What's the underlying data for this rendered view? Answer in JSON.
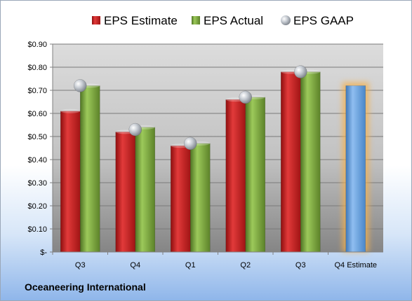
{
  "chart_data": {
    "type": "bar",
    "categories": [
      "Q3",
      "Q4",
      "Q1",
      "Q2",
      "Q3",
      "Q4 Estimate"
    ],
    "series": [
      {
        "name": "EPS Estimate",
        "values": [
          0.61,
          0.52,
          0.46,
          0.66,
          0.78,
          null
        ],
        "color": "#cc1f1f"
      },
      {
        "name": "EPS Actual",
        "values": [
          0.72,
          0.54,
          0.47,
          0.67,
          0.78,
          null
        ],
        "color": "#77a43a"
      },
      {
        "name": "EPS GAAP",
        "values": [
          0.72,
          0.53,
          0.47,
          0.67,
          0.78,
          null
        ],
        "color": "#c8cdd4",
        "marker": "sphere"
      }
    ],
    "estimate": {
      "category": "Q4 Estimate",
      "value": 0.72,
      "color": "#5b9ad8",
      "glow": "#f5b04c"
    },
    "y_ticks": [
      "$-",
      "$0.10",
      "$0.20",
      "$0.30",
      "$0.40",
      "$0.50",
      "$0.60",
      "$0.70",
      "$0.80",
      "$0.90"
    ],
    "ylim": [
      0,
      0.9
    ],
    "grid": true,
    "legend_position": "top"
  },
  "company_name": "Oceaneering International"
}
